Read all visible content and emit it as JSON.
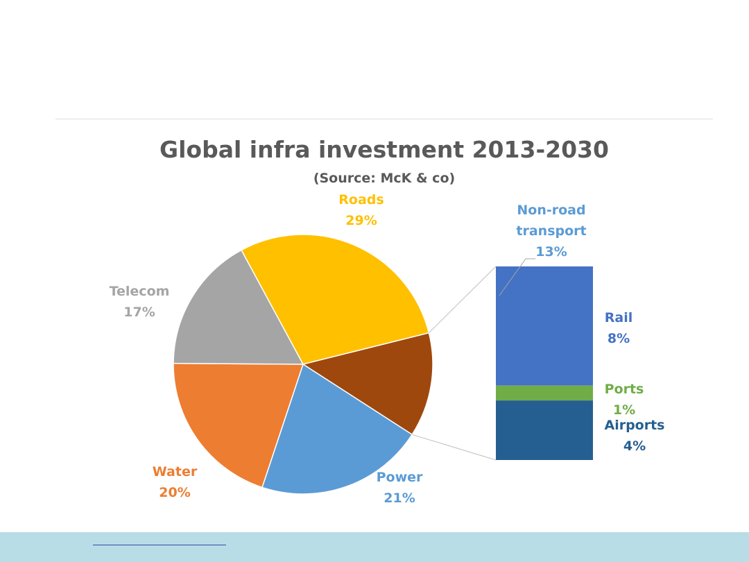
{
  "chart_data": {
    "type": "pie",
    "title": "Global infra investment 2013-2030",
    "subtitle": "(Source: McK & co)",
    "slices": [
      {
        "label": "Roads",
        "value": 29,
        "value_label": "29%",
        "color": "#ffc000"
      },
      {
        "label": "Non-road transport",
        "value": 13,
        "value_label": "13%",
        "color": "#9e480e"
      },
      {
        "label": "Power",
        "value": 21,
        "value_label": "21%",
        "color": "#5b9bd5"
      },
      {
        "label": "Water",
        "value": 20,
        "value_label": "20%",
        "color": "#ed7d31"
      },
      {
        "label": "Telecom",
        "value": 17,
        "value_label": "17%",
        "color": "#a5a5a5"
      }
    ],
    "breakdown": {
      "of": "Non-road transport",
      "type": "stacked_bar",
      "segments": [
        {
          "label": "Rail",
          "value": 8,
          "value_label": "8%",
          "color": "#4472c4"
        },
        {
          "label": "Ports",
          "value": 1,
          "value_label": "1%",
          "color": "#70ad47"
        },
        {
          "label": "Airports",
          "value": 4,
          "value_label": "4%",
          "color": "#255e91"
        }
      ]
    }
  },
  "label_colors": {
    "Roads": "#ffc000",
    "Non-road transport": "#5b9bd5",
    "Power": "#5b9bd5",
    "Water": "#ed7d31",
    "Telecom": "#a5a5a5",
    "Rail": "#4472c4",
    "Ports": "#70ad47",
    "Airports": "#255e91"
  },
  "footer": {
    "background": "#b9dde6"
  }
}
